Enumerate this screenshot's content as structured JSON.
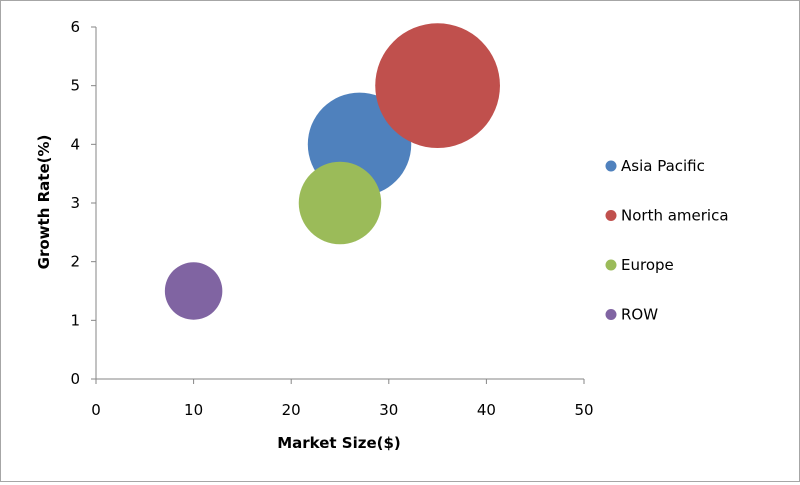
{
  "chart_data": {
    "type": "bubble",
    "xlabel": "Market Size($)",
    "ylabel": "Growth Rate(%)",
    "xlim": [
      0,
      50
    ],
    "ylim": [
      0,
      6
    ],
    "x_ticks": [
      0,
      10,
      20,
      30,
      40,
      50
    ],
    "y_ticks": [
      0,
      1,
      2,
      3,
      4,
      5,
      6
    ],
    "grid": false,
    "legend_position": "right",
    "series": [
      {
        "name": "Asia Pacific",
        "x": 27,
        "y": 4,
        "size": 5.5,
        "color": "#4f81bd"
      },
      {
        "name": "North america",
        "x": 35,
        "y": 5,
        "size": 8,
        "color": "#c0504d"
      },
      {
        "name": "Europe",
        "x": 25,
        "y": 3,
        "size": 3.5,
        "color": "#9bbb59"
      },
      {
        "name": "ROW",
        "x": 10,
        "y": 1.5,
        "size": 1.7,
        "color": "#8064a2"
      }
    ]
  }
}
